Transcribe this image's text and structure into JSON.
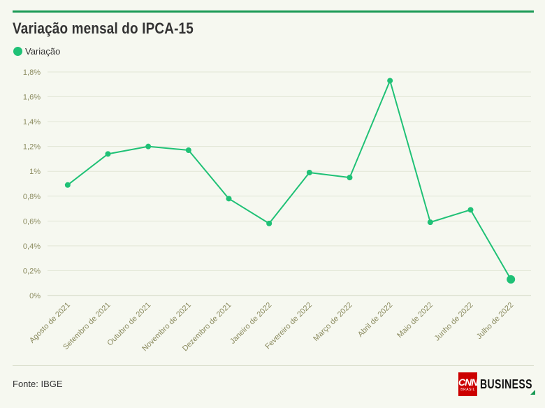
{
  "title": "Variação mensal do IPCA-15",
  "legend": {
    "label": "Variação"
  },
  "source": "Fonte: IBGE",
  "brand": {
    "cnn": "CNN",
    "sub": "BRASIL",
    "business": "BUSINESS"
  },
  "colors": {
    "accent": "#1fc176",
    "rule": "#1a9a55",
    "axis_text": "#8a8a5e",
    "grid": "#e2e6d6"
  },
  "chart_data": {
    "type": "line",
    "title": "Variação mensal do IPCA-15",
    "xlabel": "",
    "ylabel": "",
    "categories": [
      "Agosto de 2021",
      "Setembro de 2021",
      "Outubro de 2021",
      "Novembro de 2021",
      "Dezembro de 2021",
      "Janeiro de 2022",
      "Fevereiro de 2022",
      "Março de 2022",
      "Abril de 2022",
      "Maio de 2022",
      "Junho de 2022",
      "Julho de 2022"
    ],
    "series": [
      {
        "name": "Variação",
        "values": [
          0.89,
          1.14,
          1.2,
          1.17,
          0.78,
          0.58,
          0.99,
          0.95,
          1.73,
          0.59,
          0.69,
          0.13
        ]
      }
    ],
    "ylim": [
      0,
      1.8
    ],
    "yticks": [
      0,
      0.2,
      0.4,
      0.6,
      0.8,
      1,
      1.2,
      1.4,
      1.6,
      1.8
    ],
    "ytick_labels": [
      "0%",
      "0,2%",
      "0,4%",
      "0,6%",
      "0,8%",
      "1%",
      "1,2%",
      "1,4%",
      "1,6%",
      "1,8%"
    ],
    "grid": true,
    "legend_position": "top-left"
  }
}
